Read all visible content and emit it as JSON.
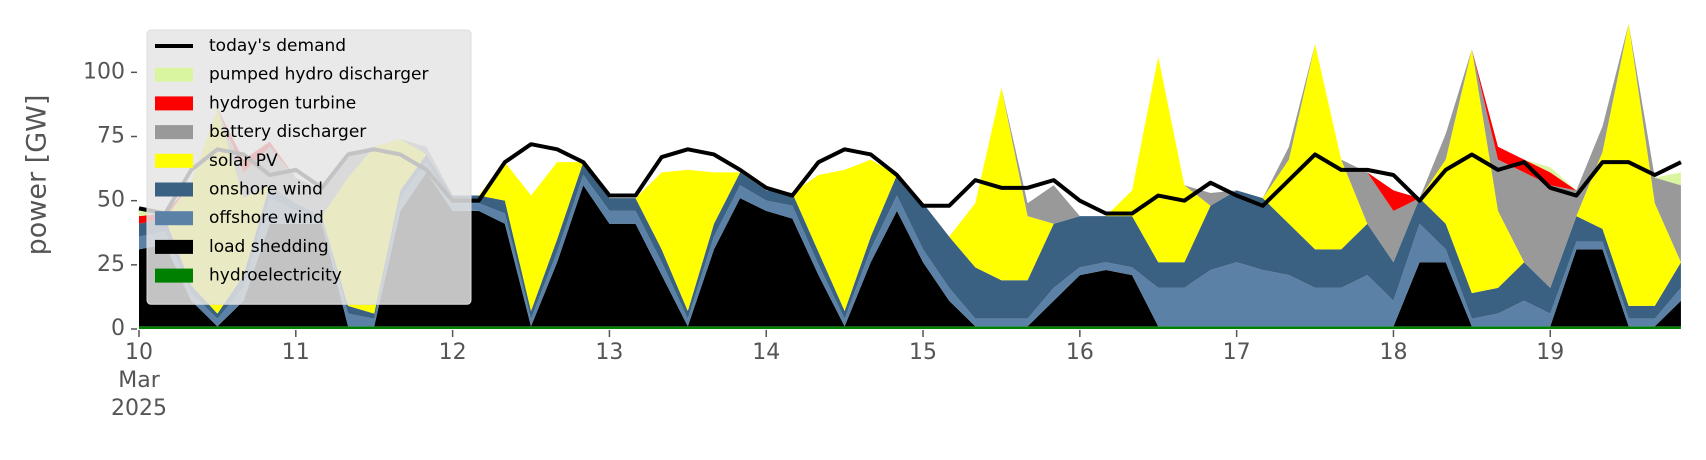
{
  "chart_data": {
    "type": "stacked_area",
    "y_label": "power [GW]",
    "x": [
      "2025-03-10T00:00",
      "2025-03-10T04:00",
      "2025-03-10T08:00",
      "2025-03-10T12:00",
      "2025-03-10T16:00",
      "2025-03-10T20:00",
      "2025-03-11T00:00",
      "2025-03-11T04:00",
      "2025-03-11T08:00",
      "2025-03-11T12:00",
      "2025-03-11T16:00",
      "2025-03-11T20:00",
      "2025-03-12T00:00",
      "2025-03-12T04:00",
      "2025-03-12T08:00",
      "2025-03-12T12:00",
      "2025-03-12T16:00",
      "2025-03-12T20:00",
      "2025-03-13T00:00",
      "2025-03-13T04:00",
      "2025-03-13T08:00",
      "2025-03-13T12:00",
      "2025-03-13T16:00",
      "2025-03-13T20:00",
      "2025-03-14T00:00",
      "2025-03-14T04:00",
      "2025-03-14T08:00",
      "2025-03-14T12:00",
      "2025-03-14T16:00",
      "2025-03-14T20:00",
      "2025-03-15T00:00",
      "2025-03-15T04:00",
      "2025-03-15T08:00",
      "2025-03-15T12:00",
      "2025-03-15T16:00",
      "2025-03-15T20:00",
      "2025-03-16T00:00",
      "2025-03-16T04:00",
      "2025-03-16T08:00",
      "2025-03-16T12:00",
      "2025-03-16T16:00",
      "2025-03-16T20:00",
      "2025-03-17T00:00",
      "2025-03-17T04:00",
      "2025-03-17T08:00",
      "2025-03-17T12:00",
      "2025-03-17T16:00",
      "2025-03-17T20:00",
      "2025-03-18T00:00",
      "2025-03-18T04:00",
      "2025-03-18T08:00",
      "2025-03-18T12:00",
      "2025-03-18T16:00",
      "2025-03-18T20:00",
      "2025-03-19T00:00",
      "2025-03-19T04:00",
      "2025-03-19T08:00",
      "2025-03-19T12:00",
      "2025-03-19T16:00",
      "2025-03-19T20:00"
    ],
    "series": [
      {
        "name": "hydroelectricity",
        "color": "#008000",
        "values": [
          1,
          1,
          1,
          1,
          1,
          1,
          1,
          1,
          1,
          1,
          1,
          1,
          1,
          1,
          1,
          1,
          1,
          1,
          1,
          1,
          1,
          1,
          1,
          1,
          1,
          1,
          1,
          1,
          1,
          1,
          1,
          1,
          1,
          1,
          1,
          1,
          1,
          1,
          1,
          1,
          1,
          1,
          1,
          1,
          1,
          1,
          1,
          1,
          1,
          1,
          1,
          1,
          1,
          1,
          1,
          1,
          1,
          1,
          1,
          1
        ]
      },
      {
        "name": "load shedding",
        "color": "#000000",
        "values": [
          30,
          32,
          10,
          0,
          10,
          40,
          40,
          40,
          0,
          0,
          45,
          60,
          45,
          45,
          40,
          0,
          25,
          55,
          40,
          40,
          20,
          0,
          30,
          50,
          45,
          42,
          20,
          0,
          25,
          45,
          25,
          10,
          0,
          0,
          0,
          10,
          20,
          22,
          20,
          0,
          0,
          0,
          0,
          0,
          0,
          0,
          0,
          0,
          0,
          25,
          25,
          0,
          0,
          0,
          0,
          30,
          30,
          0,
          0,
          10
        ]
      },
      {
        "name": "offshore wind",
        "color": "#5b82a6",
        "values": [
          5,
          5,
          3,
          3,
          5,
          10,
          5,
          2,
          5,
          3,
          5,
          4,
          3,
          3,
          4,
          3,
          4,
          4,
          5,
          5,
          5,
          3,
          5,
          5,
          4,
          5,
          4,
          3,
          5,
          6,
          5,
          5,
          3,
          3,
          3,
          5,
          3,
          3,
          3,
          15,
          15,
          22,
          25,
          22,
          20,
          15,
          15,
          20,
          10,
          15,
          5,
          3,
          5,
          10,
          5,
          3,
          3,
          3,
          3,
          5
        ]
      },
      {
        "name": "onshore wind",
        "color": "#3b6182",
        "values": [
          5,
          5,
          3,
          2,
          5,
          5,
          3,
          1,
          3,
          2,
          3,
          3,
          3,
          3,
          5,
          3,
          5,
          5,
          5,
          5,
          5,
          3,
          5,
          5,
          4,
          5,
          5,
          3,
          5,
          8,
          18,
          20,
          20,
          15,
          15,
          25,
          20,
          18,
          20,
          10,
          10,
          25,
          28,
          28,
          20,
          15,
          15,
          20,
          15,
          10,
          10,
          10,
          10,
          15,
          10,
          10,
          5,
          5,
          5,
          10
        ]
      },
      {
        "name": "solar PV",
        "color": "#ffff00",
        "values": [
          0,
          0,
          40,
          80,
          30,
          0,
          0,
          0,
          50,
          65,
          20,
          0,
          0,
          0,
          15,
          45,
          30,
          0,
          0,
          0,
          30,
          55,
          20,
          0,
          0,
          0,
          30,
          55,
          30,
          0,
          0,
          0,
          25,
          75,
          25,
          0,
          0,
          0,
          10,
          80,
          30,
          0,
          0,
          0,
          25,
          80,
          35,
          0,
          0,
          0,
          25,
          95,
          30,
          0,
          0,
          0,
          30,
          110,
          40,
          0
        ]
      },
      {
        "name": "battery discharger",
        "color": "#999999",
        "values": [
          0,
          0,
          0,
          0,
          10,
          15,
          10,
          10,
          10,
          0,
          0,
          3,
          0,
          0,
          0,
          0,
          0,
          0,
          0,
          0,
          0,
          0,
          0,
          0,
          0,
          0,
          0,
          0,
          0,
          0,
          0,
          0,
          0,
          0,
          5,
          15,
          0,
          0,
          0,
          0,
          0,
          5,
          0,
          0,
          5,
          0,
          0,
          20,
          20,
          0,
          10,
          0,
          20,
          35,
          40,
          10,
          10,
          0,
          10,
          30
        ]
      },
      {
        "name": "hydrogen turbine",
        "color": "#ff0000",
        "values": [
          3,
          2,
          0,
          0,
          5,
          2,
          0,
          0,
          0,
          0,
          0,
          0,
          0,
          0,
          0,
          0,
          0,
          0,
          0,
          0,
          0,
          0,
          0,
          0,
          0,
          0,
          0,
          0,
          0,
          0,
          0,
          0,
          0,
          0,
          0,
          0,
          0,
          0,
          0,
          0,
          0,
          0,
          0,
          0,
          0,
          0,
          0,
          0,
          8,
          0,
          0,
          0,
          5,
          5,
          5,
          0,
          0,
          0,
          0,
          0
        ]
      },
      {
        "name": "pumped hydro discharger",
        "color": "#d9f5a0",
        "values": [
          2,
          0,
          0,
          0,
          0,
          0,
          0,
          0,
          0,
          0,
          0,
          0,
          0,
          0,
          0,
          0,
          0,
          0,
          0,
          0,
          0,
          0,
          0,
          0,
          0,
          0,
          0,
          0,
          0,
          0,
          0,
          0,
          0,
          0,
          0,
          0,
          0,
          0,
          0,
          0,
          0,
          0,
          0,
          0,
          0,
          0,
          0,
          0,
          0,
          0,
          0,
          0,
          0,
          0,
          2,
          0,
          0,
          0,
          0,
          5
        ]
      }
    ],
    "line": {
      "name": "today's demand",
      "color": "#000000",
      "values": [
        47,
        45,
        62,
        70,
        68,
        60,
        62,
        55,
        68,
        70,
        68,
        62,
        50,
        50,
        65,
        72,
        70,
        65,
        52,
        52,
        67,
        70,
        68,
        62,
        55,
        52,
        65,
        70,
        68,
        60,
        48,
        48,
        58,
        55,
        55,
        58,
        50,
        45,
        45,
        52,
        50,
        57,
        52,
        48,
        58,
        68,
        62,
        62,
        60,
        50,
        62,
        68,
        62,
        65,
        55,
        52,
        65,
        65,
        60,
        65
      ]
    },
    "xlim": [
      "2025-03-10T00:00",
      "2025-03-19T22:00"
    ],
    "xticks": [
      {
        "value": "2025-03-10T00:00",
        "label": "10\nMar\n2025"
      },
      {
        "value": "2025-03-11T00:00",
        "label": "11"
      },
      {
        "value": "2025-03-12T00:00",
        "label": "12"
      },
      {
        "value": "2025-03-13T00:00",
        "label": "13"
      },
      {
        "value": "2025-03-14T00:00",
        "label": "14"
      },
      {
        "value": "2025-03-15T00:00",
        "label": "15"
      },
      {
        "value": "2025-03-16T00:00",
        "label": "16"
      },
      {
        "value": "2025-03-17T00:00",
        "label": "17"
      },
      {
        "value": "2025-03-18T00:00",
        "label": "18"
      },
      {
        "value": "2025-03-19T00:00",
        "label": "19"
      }
    ],
    "ylim": [
      0,
      120
    ],
    "yticks": [
      0,
      25,
      50,
      75,
      100
    ],
    "legend": "upper left"
  }
}
